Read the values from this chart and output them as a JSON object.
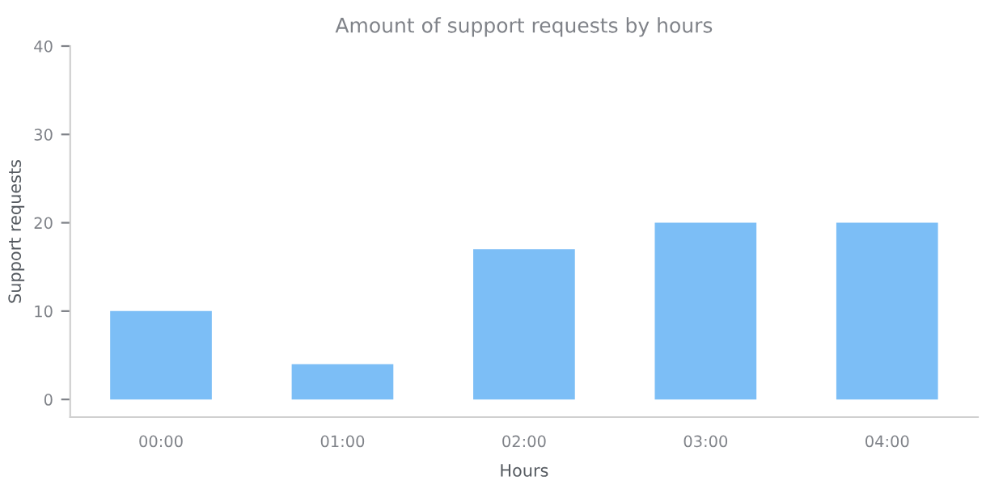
{
  "chart_data": {
    "type": "bar",
    "title": "Amount of support requests by hours",
    "xlabel": "Hours",
    "ylabel": "Support requests",
    "categories": [
      "00:00",
      "01:00",
      "02:00",
      "03:00",
      "04:00"
    ],
    "values": [
      10,
      4,
      17,
      20,
      20
    ],
    "color": "#7cbef6",
    "ylim": [
      -2,
      40
    ],
    "yticks": [
      0,
      10,
      20,
      30,
      40
    ],
    "grid": false,
    "legend": false
  }
}
